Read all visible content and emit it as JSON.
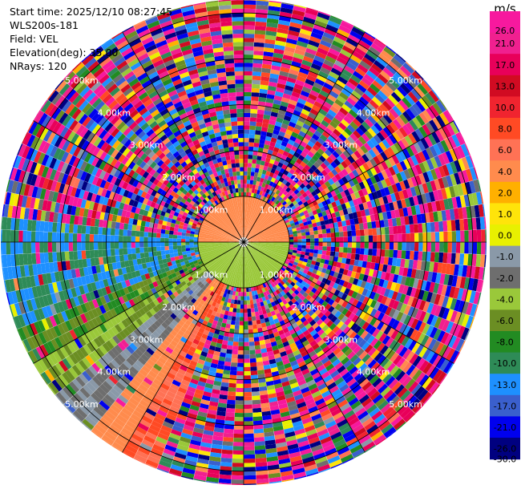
{
  "header": {
    "start_time": "Start time: 2025/12/10 08:27:45",
    "instrument": "WLS200s-181",
    "field": "Field: VEL",
    "elevation": "Elevation(deg): 35.00",
    "nrays": "NRays: 120"
  },
  "chart_data": {
    "type": "ppi",
    "field": "VEL",
    "elevation_deg": 35.0,
    "nrays": 120,
    "range_rings_km": [
      1,
      2,
      3,
      4,
      5
    ],
    "ring_labels": [
      "1.00km",
      "2.00km",
      "3.00km",
      "4.00km",
      "5.00km"
    ],
    "max_range_km": 5.3,
    "colorbar": {
      "unit": "m/s",
      "ticks": [
        "26.0",
        "21.0",
        "17.0",
        "13.0",
        "10.0",
        "8.0",
        "6.0",
        "4.0",
        "2.0",
        "1.0",
        "0.0",
        "-1.0",
        "-2.0",
        "-4.0",
        "-6.0",
        "-8.0",
        "-10.0",
        "-13.0",
        "-17.0",
        "-21.0",
        "-26.0",
        "-30.0"
      ],
      "colors": [
        "#f7199e",
        "#f0208f",
        "#e8005a",
        "#d10b22",
        "#f0242f",
        "#ff4a24",
        "#ff7255",
        "#ff8b4d",
        "#ffb000",
        "#ffe40a",
        "#e8f000",
        "#8a99a8",
        "#6e6e6e",
        "#9ac83a",
        "#6b8e23",
        "#228b22",
        "#2e8b57",
        "#1e90ff",
        "#3a5fcd",
        "#0000ee",
        "#000080",
        "#151555"
      ]
    },
    "near_field": {
      "range_km": [
        0,
        1.0
      ],
      "north_half_value": 3.0,
      "south_half_value": -5.0
    },
    "west_sector": {
      "azimuth_deg": [
        200,
        275
      ],
      "range_km": [
        0.9,
        5.3
      ],
      "values_by_azimuth": [
        {
          "az": 205,
          "value": 6.0
        },
        {
          "az": 215,
          "value": 3.0
        },
        {
          "az": 225,
          "value": -2.0
        },
        {
          "az": 235,
          "value": -6.0
        },
        {
          "az": 245,
          "value": -8.0
        },
        {
          "az": 255,
          "value": -13.0
        },
        {
          "az": 265,
          "value": -13.0
        }
      ]
    },
    "noise_region": {
      "range_km": [
        1.0,
        5.3
      ],
      "value_range": [
        -30.0,
        26.0
      ]
    }
  }
}
